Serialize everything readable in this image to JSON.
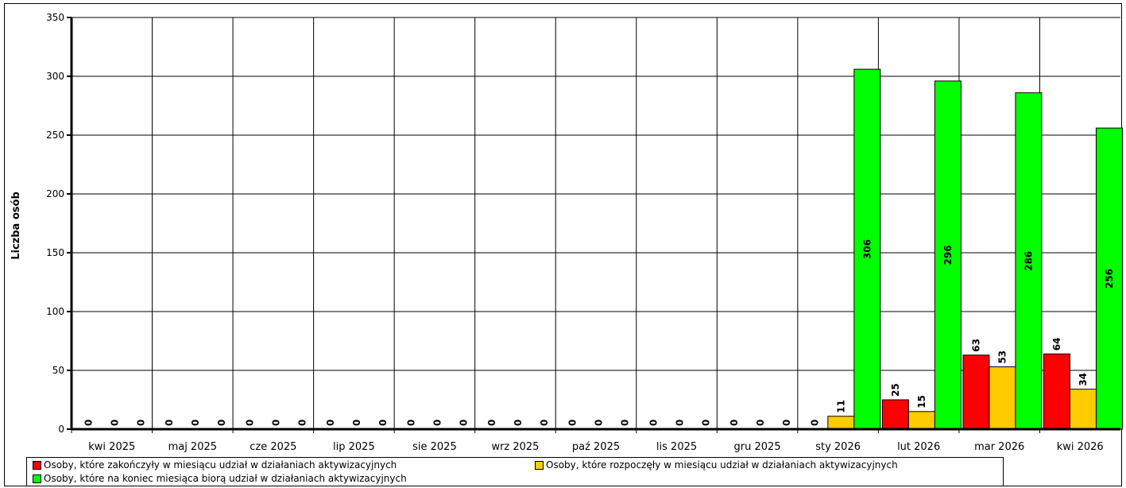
{
  "chart_data": {
    "type": "bar",
    "ylabel": "Liczba osób",
    "ylim": [
      0,
      350
    ],
    "yticks": [
      0,
      50,
      100,
      150,
      200,
      250,
      300,
      350
    ],
    "grid": true,
    "legend_position": "bottom",
    "categories": [
      "kwi 2025",
      "maj 2025",
      "cze 2025",
      "lip 2025",
      "sie 2025",
      "wrz 2025",
      "paź 2025",
      "lis 2025",
      "gru 2025",
      "sty 2026",
      "lut 2026",
      "mar 2026",
      "kwi 2026"
    ],
    "series": [
      {
        "name": "Osoby, które zakończyły w miesiącu udział w działaniach aktywizacyjnych",
        "color": "#ff0000",
        "values": [
          0,
          0,
          0,
          0,
          0,
          0,
          0,
          0,
          0,
          0,
          25,
          63,
          64
        ]
      },
      {
        "name": "Osoby, które rozpoczęły w miesiącu udział w działaniach aktywizacyjnych",
        "color": "#ffcc00",
        "values": [
          0,
          0,
          0,
          0,
          0,
          0,
          0,
          0,
          0,
          11,
          15,
          53,
          34
        ]
      },
      {
        "name": "Osoby, które na koniec miesiąca biorą udział w działaniach aktywizacyjnych",
        "color": "#00ff00",
        "values": [
          0,
          0,
          0,
          0,
          0,
          0,
          0,
          0,
          0,
          306,
          296,
          286,
          256
        ]
      }
    ]
  }
}
